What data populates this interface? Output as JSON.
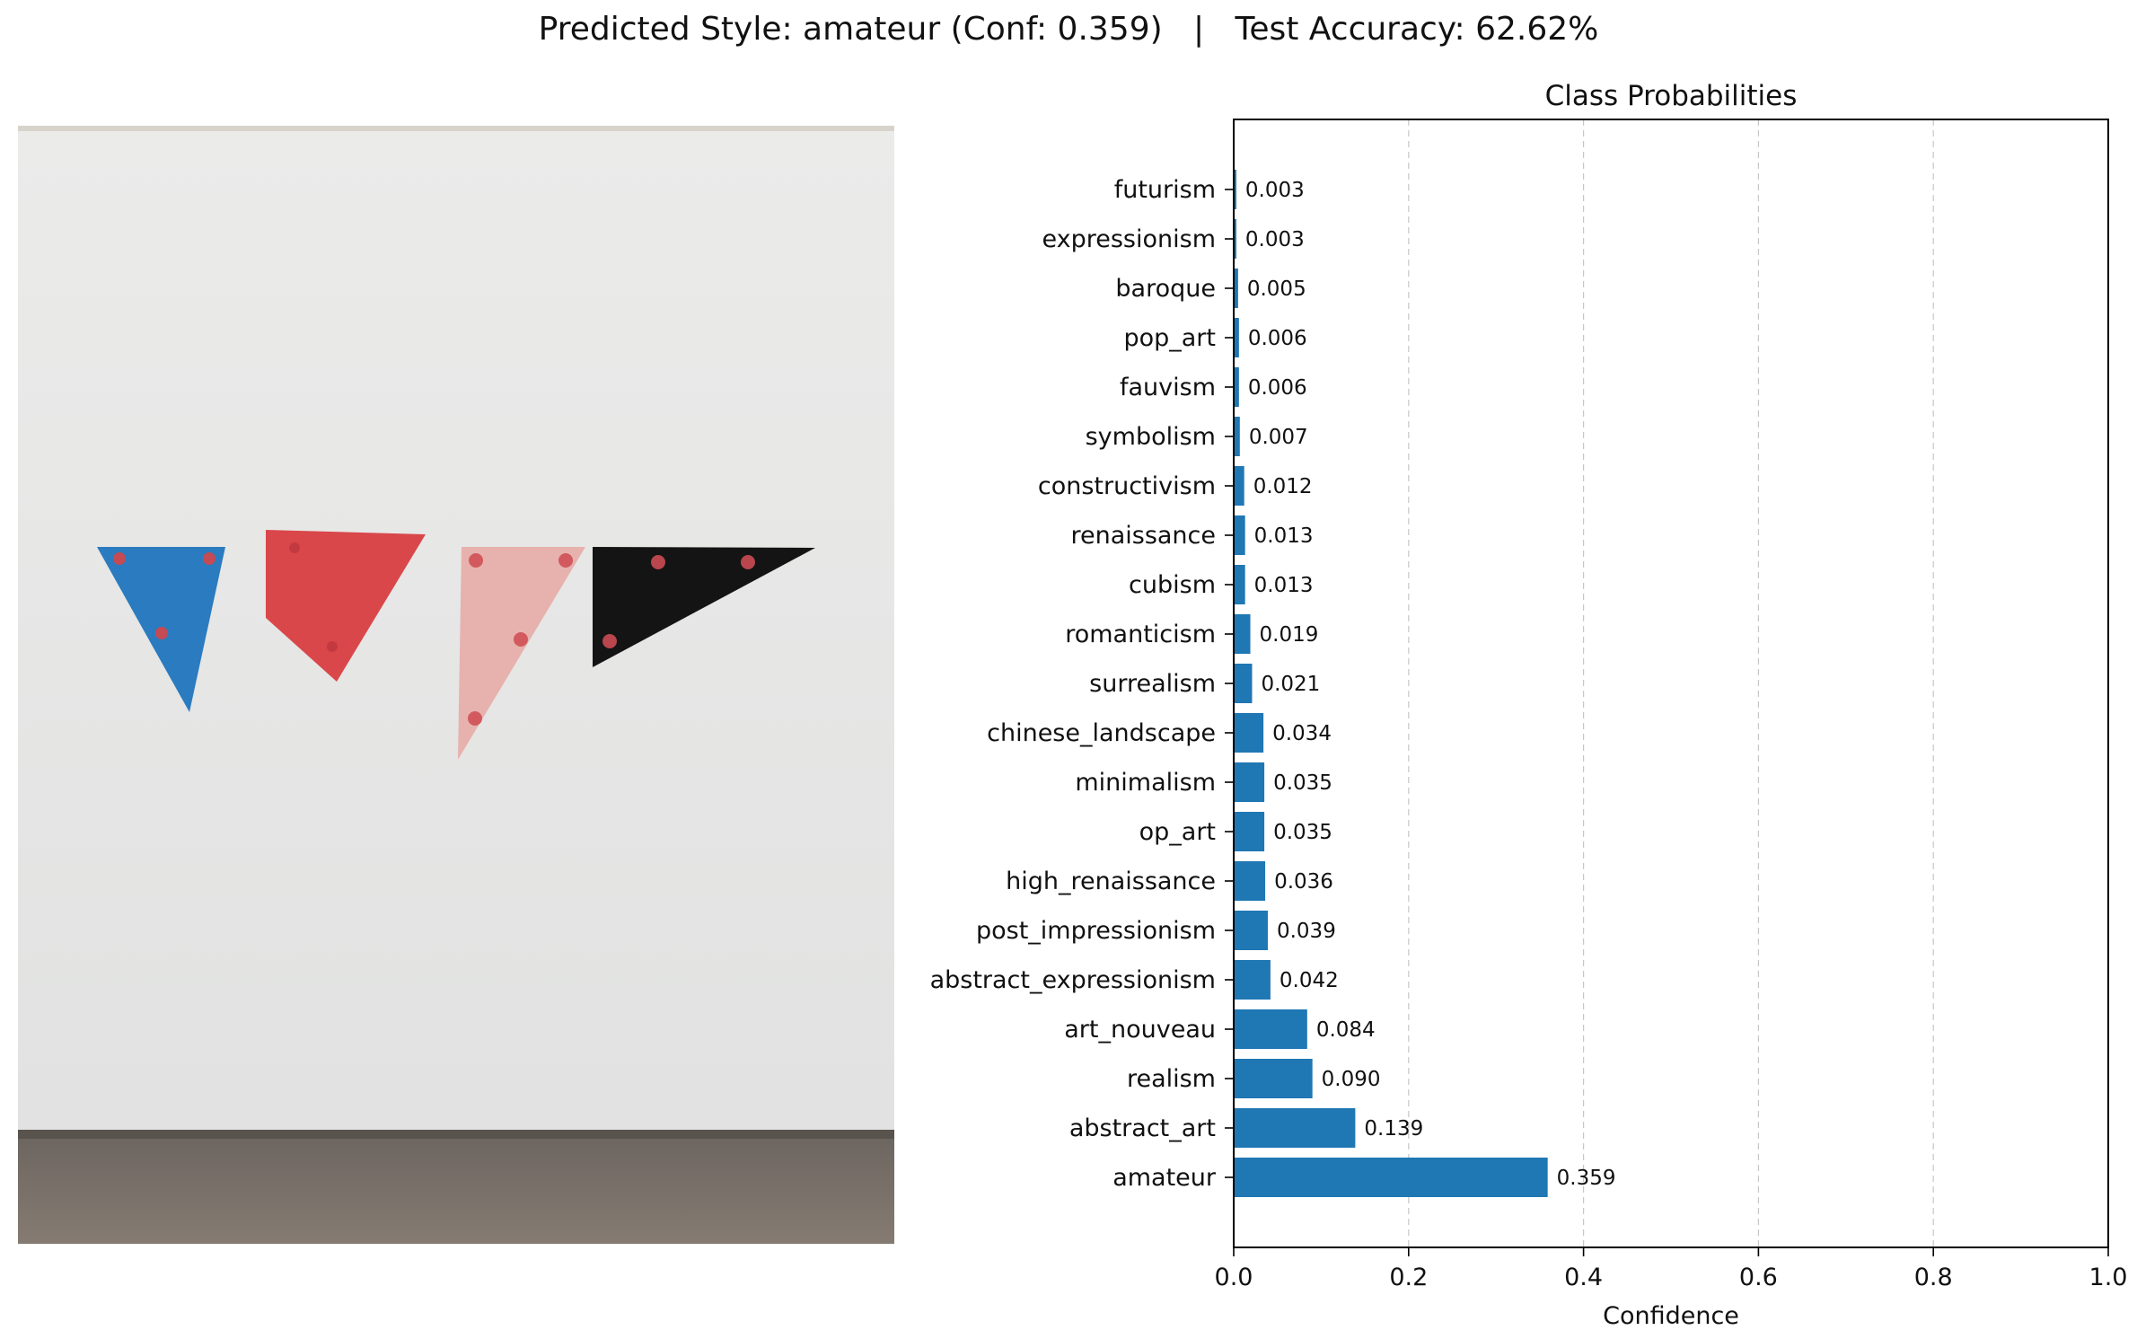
{
  "figure": {
    "suptitle": "Predicted Style: amateur (Conf: 0.359)   |   Test Accuracy: 62.62%"
  },
  "image_panel": {
    "subject": "artwork-photo",
    "colors": {
      "wall": "#e6e6e4",
      "floor": "#7a7068",
      "blue": "#2a7bbf",
      "red": "#d9474a",
      "pink": "#e7b2ad",
      "black": "#141414"
    }
  },
  "chart_data": {
    "type": "bar",
    "orientation": "horizontal",
    "title": "Class Probabilities",
    "xlabel": "Confidence",
    "ylabel": "",
    "xlim": [
      0,
      1
    ],
    "xticks": [
      0.0,
      0.2,
      0.4,
      0.6,
      0.8,
      1.0
    ],
    "xtick_labels": [
      "0.0",
      "0.2",
      "0.4",
      "0.6",
      "0.8",
      "1.0"
    ],
    "grid": "x-dashed",
    "bar_color": "#1f77b4",
    "categories": [
      "amateur",
      "abstract_art",
      "realism",
      "art_nouveau",
      "abstract_expressionism",
      "post_impressionism",
      "high_renaissance",
      "op_art",
      "minimalism",
      "chinese_landscape",
      "surrealism",
      "romanticism",
      "cubism",
      "renaissance",
      "constructivism",
      "symbolism",
      "fauvism",
      "pop_art",
      "baroque",
      "expressionism",
      "futurism"
    ],
    "values": [
      0.359,
      0.139,
      0.09,
      0.084,
      0.042,
      0.039,
      0.036,
      0.035,
      0.035,
      0.034,
      0.021,
      0.019,
      0.013,
      0.013,
      0.012,
      0.007,
      0.006,
      0.006,
      0.005,
      0.003,
      0.003
    ],
    "value_labels": [
      "0.359",
      "0.139",
      "0.090",
      "0.084",
      "0.042",
      "0.039",
      "0.036",
      "0.035",
      "0.035",
      "0.034",
      "0.021",
      "0.019",
      "0.013",
      "0.013",
      "0.012",
      "0.007",
      "0.006",
      "0.006",
      "0.005",
      "0.003",
      "0.003"
    ]
  }
}
